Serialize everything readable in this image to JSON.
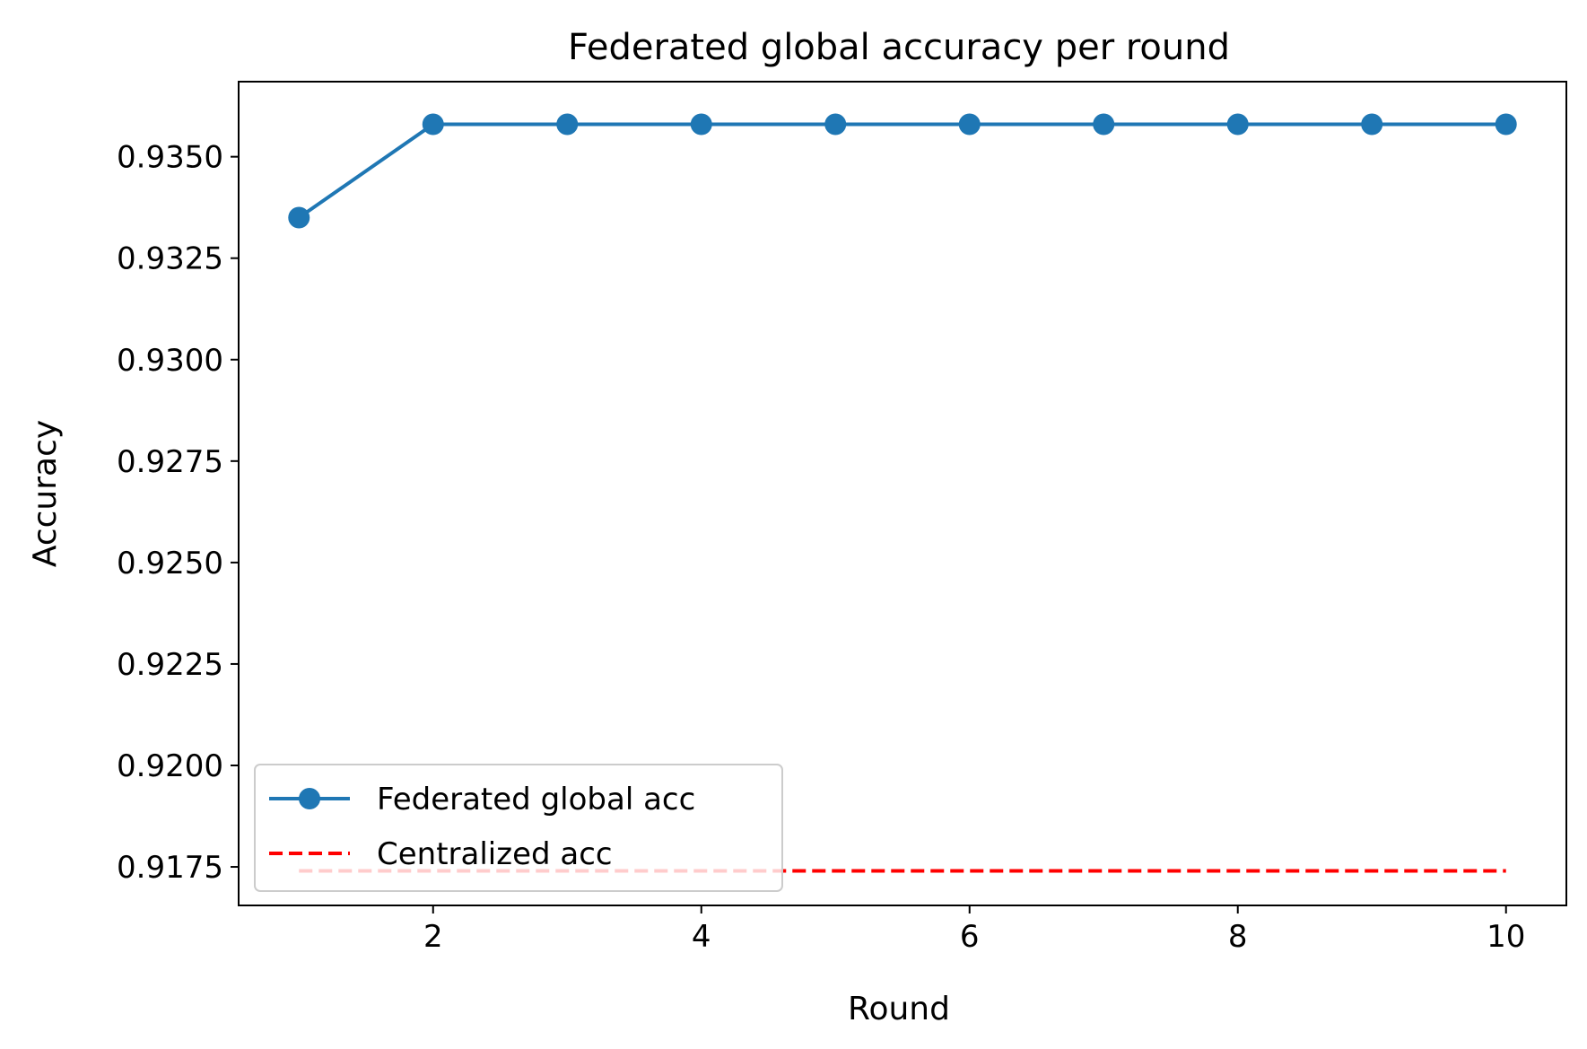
{
  "chart_data": {
    "type": "line",
    "title": "Federated global accuracy per round",
    "xlabel": "Round",
    "ylabel": "Accuracy",
    "xlim": [
      0.55,
      10.45
    ],
    "ylim": [
      0.91655,
      0.93685
    ],
    "xticks": [
      2,
      4,
      6,
      8,
      10
    ],
    "yticks": [
      0.9175,
      0.92,
      0.9225,
      0.925,
      0.9275,
      0.93,
      0.9325,
      0.935
    ],
    "yticks_labels": [
      "0.9175",
      "0.9200",
      "0.9225",
      "0.9250",
      "0.9275",
      "0.9300",
      "0.9325",
      "0.9350"
    ],
    "grid": false,
    "legend_position": "lower-left",
    "series": [
      {
        "name": "Federated global acc",
        "color": "#1f77b4",
        "style": "solid",
        "marker": "circle",
        "x": [
          1,
          2,
          3,
          4,
          5,
          6,
          7,
          8,
          9,
          10
        ],
        "y": [
          0.9335,
          0.9358,
          0.9358,
          0.9358,
          0.9358,
          0.9358,
          0.9358,
          0.9358,
          0.9358,
          0.9358
        ]
      },
      {
        "name": "Centralized acc",
        "color": "#ff0000",
        "style": "dashed",
        "marker": "none",
        "x": [
          1,
          10
        ],
        "y": [
          0.9174,
          0.9174
        ]
      }
    ]
  }
}
